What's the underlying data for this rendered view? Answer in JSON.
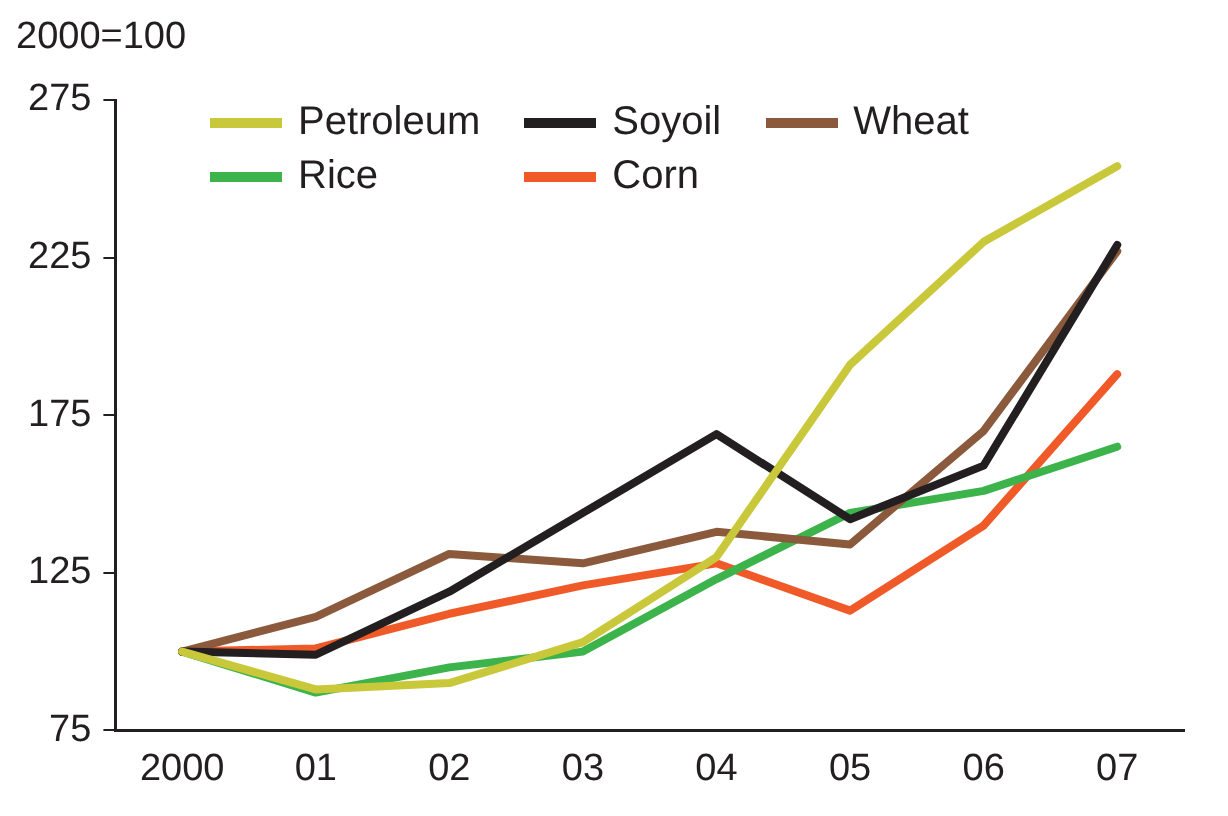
{
  "chart_data": {
    "type": "line",
    "ylabel": "2000=100",
    "categories": [
      "2000",
      "01",
      "02",
      "03",
      "04",
      "05",
      "06",
      "07"
    ],
    "series": [
      {
        "name": "Petroleum",
        "color": "#c9c83a",
        "values": [
          100,
          88,
          90,
          103,
          130,
          191,
          230,
          254
        ]
      },
      {
        "name": "Soyoil",
        "color": "#231f20",
        "values": [
          100,
          99,
          119,
          144,
          169,
          142,
          159,
          229
        ]
      },
      {
        "name": "Wheat",
        "color": "#8b5a3c",
        "values": [
          100,
          111,
          131,
          128,
          138,
          134,
          170,
          227
        ]
      },
      {
        "name": "Rice",
        "color": "#3cb44b",
        "values": [
          100,
          87,
          95,
          100,
          123,
          144,
          151,
          165
        ]
      },
      {
        "name": "Corn",
        "color": "#f05a28",
        "values": [
          100,
          101,
          112,
          121,
          128,
          113,
          140,
          188
        ]
      }
    ],
    "ylim": [
      75,
      275
    ],
    "yticks": [
      75,
      125,
      175,
      225,
      275
    ],
    "grid": false,
    "legend": "top left",
    "marker": "none",
    "line_style": "solid"
  }
}
